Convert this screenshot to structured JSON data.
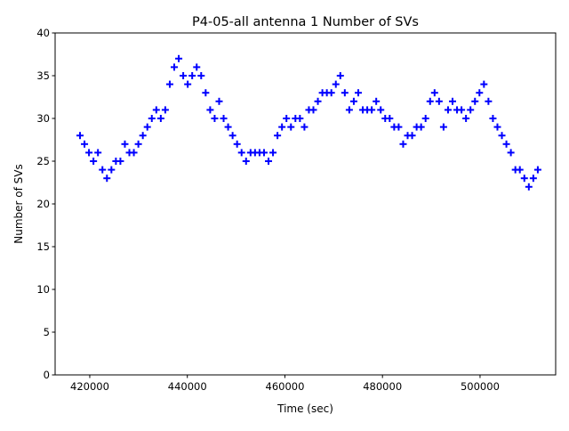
{
  "chart_data": {
    "type": "scatter",
    "title": "P4-05-all antenna 1 Number of SVs",
    "xlabel": "Time (sec)",
    "ylabel": "Number of SVs",
    "xlim": [
      412900,
      515500
    ],
    "ylim": [
      0,
      40
    ],
    "xticks": [
      420000,
      440000,
      460000,
      480000,
      500000
    ],
    "yticks": [
      0,
      5,
      10,
      15,
      20,
      25,
      30,
      35,
      40
    ],
    "marker": "+",
    "color": "#0000ff",
    "grid": false,
    "series": [
      {
        "name": "antenna 1",
        "x": [
          418000,
          418920,
          419840,
          420760,
          421680,
          422600,
          423520,
          424440,
          425360,
          426280,
          427200,
          428120,
          429040,
          429960,
          430880,
          431800,
          432720,
          433640,
          434560,
          435480,
          436400,
          437320,
          438240,
          439160,
          440080,
          441000,
          441920,
          442840,
          443760,
          444680,
          445600,
          446520,
          447440,
          448360,
          449280,
          450200,
          451120,
          452040,
          452960,
          453880,
          454800,
          455720,
          456640,
          457560,
          458480,
          459400,
          460320,
          461240,
          462160,
          463080,
          464000,
          464920,
          465840,
          466760,
          467680,
          468600,
          469520,
          470440,
          471360,
          472280,
          473200,
          474120,
          475040,
          475960,
          476880,
          477800,
          478720,
          479640,
          480560,
          481480,
          482400,
          483320,
          484240,
          485160,
          486080,
          487000,
          487920,
          488840,
          489760,
          490680,
          491600,
          492520,
          493440,
          494360,
          495280,
          496200,
          497120,
          498040,
          498960,
          499880,
          500800,
          501720,
          502640,
          503560,
          504480,
          505400,
          506320,
          507240,
          508160,
          509080,
          510000,
          510920,
          511840
        ],
        "y": [
          28,
          27,
          26,
          25,
          26,
          24,
          23,
          24,
          25,
          25,
          27,
          26,
          26,
          27,
          28,
          29,
          30,
          31,
          30,
          31,
          34,
          36,
          37,
          35,
          34,
          35,
          36,
          35,
          33,
          31,
          30,
          32,
          30,
          29,
          28,
          27,
          26,
          25,
          26,
          26,
          26,
          26,
          25,
          26,
          28,
          29,
          30,
          29,
          30,
          30,
          29,
          31,
          31,
          32,
          33,
          33,
          33,
          34,
          35,
          33,
          31,
          32,
          33,
          31,
          31,
          31,
          32,
          31,
          30,
          30,
          29,
          29,
          27,
          28,
          28,
          29,
          29,
          30,
          32,
          33,
          32,
          29,
          31,
          32,
          31,
          31,
          30,
          31,
          32,
          33,
          34,
          32,
          30,
          29,
          28,
          27,
          26,
          24,
          24,
          23,
          22,
          23,
          24
        ]
      }
    ]
  }
}
